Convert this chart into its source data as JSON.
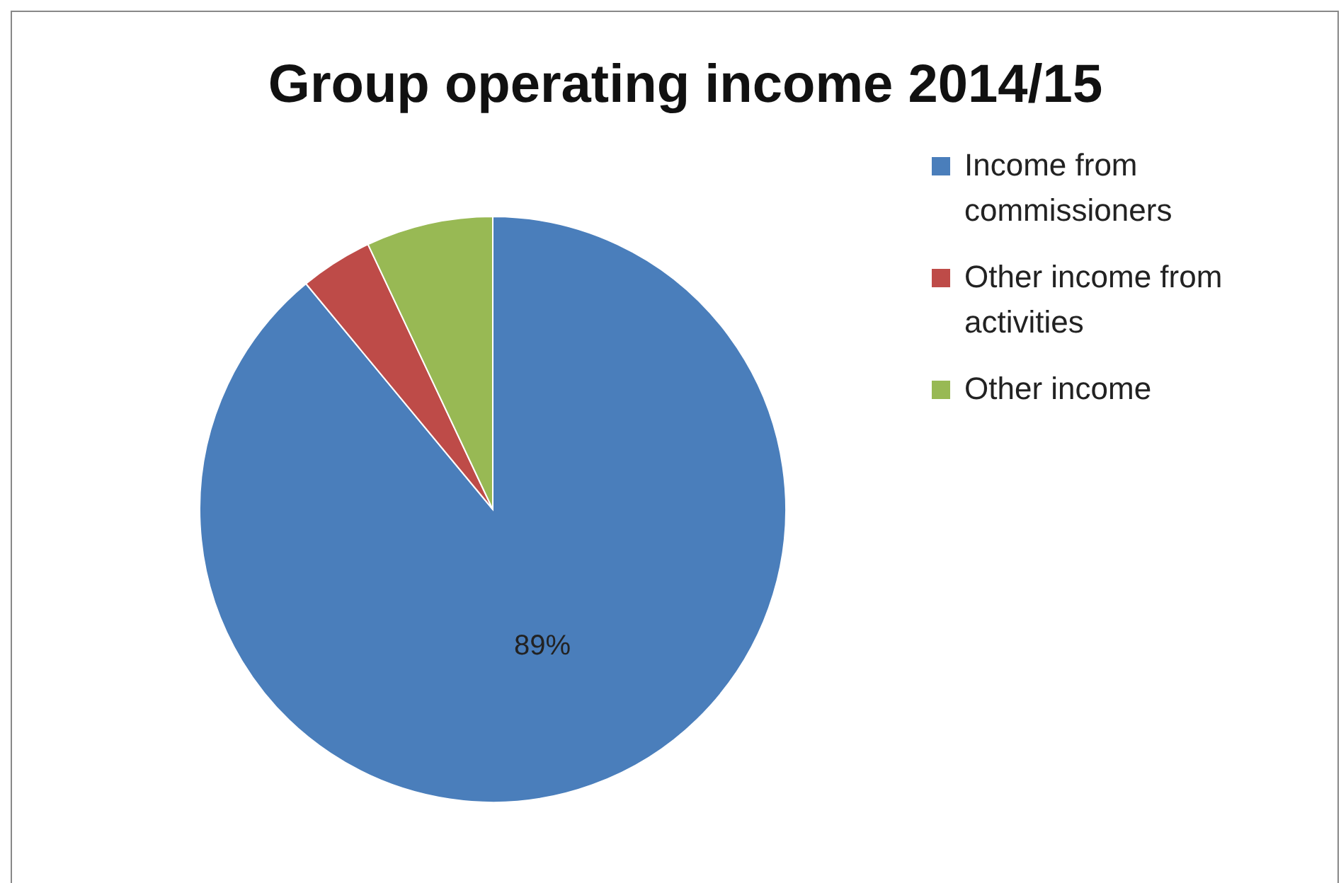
{
  "chart_data": {
    "type": "pie",
    "title": "Group operating income 2014/15",
    "categories": [
      "Income from commissioners",
      "Other income from activities",
      "Other income"
    ],
    "values": [
      89,
      4,
      7
    ],
    "colors": [
      "#4a7ebb",
      "#be4b48",
      "#98b954"
    ],
    "value_labels": [
      "89%",
      null,
      null
    ],
    "legend": "right"
  }
}
